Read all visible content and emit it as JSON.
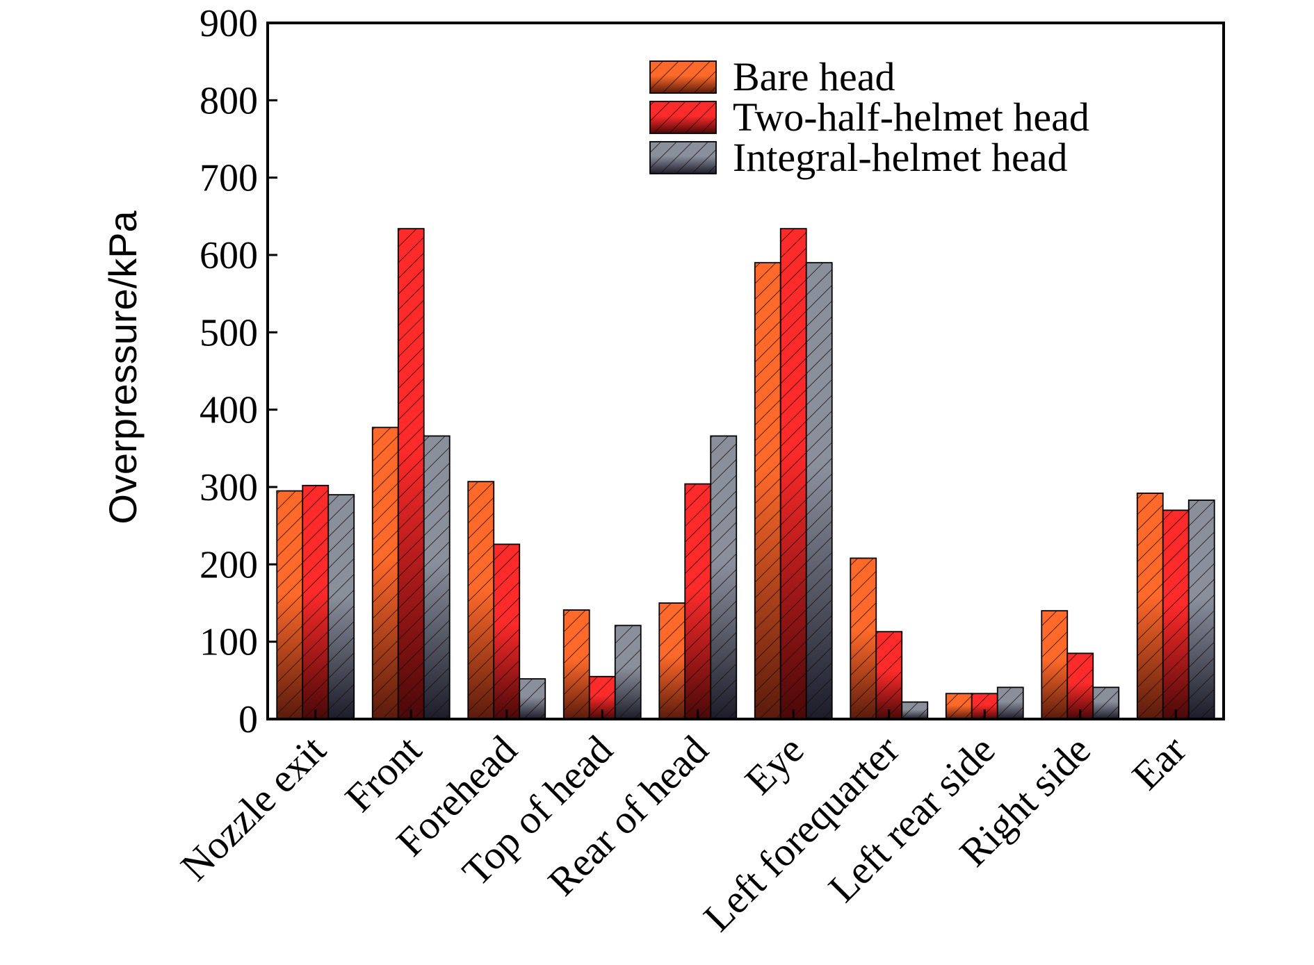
{
  "chart_data": {
    "type": "bar",
    "ylabel": "Overpressure/kPa",
    "xlabel": "",
    "ylim": [
      0,
      900
    ],
    "yticks": [
      0,
      100,
      200,
      300,
      400,
      500,
      600,
      700,
      800,
      900
    ],
    "legend_position": "top-right",
    "grid": false,
    "categories": [
      "Nozzle exit",
      "Front",
      "Forehead",
      "Top of head",
      "Rear of head",
      "Eye",
      "Left forequarter",
      "Left rear side",
      "Right side",
      "Ear"
    ],
    "series": [
      {
        "name": "Bare head",
        "color_top": "#ff6a2a",
        "color_bottom": "#5a1a0c",
        "values": [
          295,
          377,
          307,
          141,
          150,
          590,
          208,
          33,
          140,
          292
        ]
      },
      {
        "name": "Two-half-helmet head",
        "color_top": "#ff2a2a",
        "color_bottom": "#4a0808",
        "values": [
          302,
          634,
          226,
          55,
          304,
          634,
          113,
          33,
          85,
          270
        ]
      },
      {
        "name": "Integral-helmet head",
        "color_top": "#8a8f9c",
        "color_bottom": "#1c1c2a",
        "values": [
          290,
          366,
          52,
          121,
          366,
          590,
          22,
          41,
          41,
          283
        ]
      }
    ]
  }
}
